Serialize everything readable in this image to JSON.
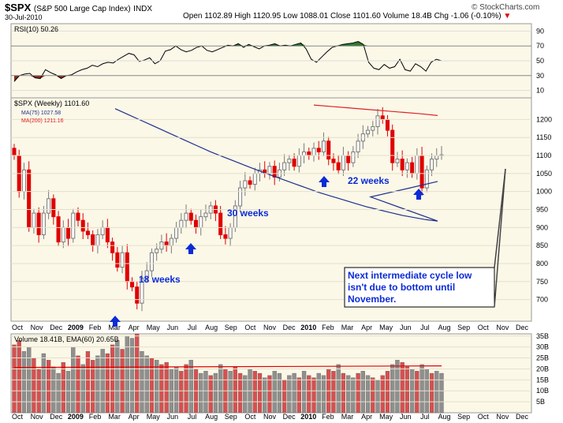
{
  "header": {
    "symbol": "$SPX",
    "name": "(S&P 500 Large Cap Index)",
    "exchange": "INDX",
    "date": "30-Jul-2010",
    "ohlc_text": "Open 1102.89  High 1120.95  Low 1088.01  Close 1101.60  Volume 18.4B  Chg -1.06 (-0.10%)",
    "chg_arrow": "▼",
    "logo": "© StockCharts.com"
  },
  "colors": {
    "panel_bg": "#fbf8e8",
    "up_candle": "#7a7a7a",
    "down_candle": "#e00000",
    "ma75": "#1f2f8a",
    "ma200": "#e02020",
    "rsi_line": "#000000",
    "rsi_fill": "#8b2a18",
    "rsi_fill_high": "#2f7a2f",
    "annotation": "#0b2bd6",
    "volume_ema": "#e00000"
  },
  "chart_data": [
    {
      "type": "line",
      "name": "RSI(10)",
      "label": "RSI(10) 50.26",
      "ylim": [
        0,
        100
      ],
      "ticks": [
        10,
        30,
        50,
        70,
        90
      ],
      "values": [
        22,
        30,
        32,
        33,
        27,
        26,
        38,
        34,
        31,
        26,
        30,
        31,
        35,
        38,
        40,
        44,
        42,
        46,
        48,
        47,
        52,
        56,
        60,
        58,
        49,
        51,
        54,
        46,
        50,
        63,
        65,
        70,
        65,
        62,
        64,
        68,
        70,
        64,
        62,
        65,
        68,
        71,
        70,
        73,
        68,
        72,
        69,
        66,
        70,
        71,
        73,
        70,
        71,
        70,
        72,
        74,
        66,
        52,
        48,
        55,
        62,
        68,
        70,
        72,
        73,
        74,
        76,
        72,
        48,
        40,
        38,
        45,
        40,
        42,
        52,
        38,
        36,
        46,
        42,
        36,
        48,
        52,
        50
      ]
    },
    {
      "type": "candlestick",
      "name": "$SPX (Weekly)",
      "legend": [
        "$SPX (Weekly) 1101.60",
        "MA(75) 1027.58",
        "MA(200) 1211.16"
      ],
      "ylim": [
        640,
        1260
      ],
      "ticks": [
        700,
        750,
        800,
        850,
        900,
        950,
        1000,
        1050,
        1100,
        1150,
        1200
      ],
      "x_labels": [
        "Oct",
        "Nov",
        "Dec",
        "2009",
        "Feb",
        "Mar",
        "Apr",
        "May",
        "Jun",
        "Jul",
        "Aug",
        "Sep",
        "Oct",
        "Nov",
        "Dec",
        "2010",
        "Feb",
        "Mar",
        "Apr",
        "May",
        "Jun",
        "Jul",
        "Aug",
        "Sep",
        "Oct",
        "Nov",
        "Dec"
      ],
      "close": [
        1100,
        1000,
        1060,
        900,
        940,
        880,
        940,
        980,
        930,
        860,
        900,
        870,
        940,
        920,
        890,
        880,
        850,
        880,
        900,
        860,
        830,
        790,
        830,
        750,
        735,
        690,
        760,
        780,
        830,
        840,
        860,
        850,
        870,
        900,
        920,
        940,
        920,
        900,
        930,
        940,
        960,
        940,
        880,
        870,
        900,
        960,
        1010,
        1030,
        1020,
        1050,
        1060,
        1050,
        1070,
        1040,
        1060,
        1080,
        1090,
        1070,
        1100,
        1110,
        1100,
        1120,
        1110,
        1140,
        1090,
        1080,
        1060,
        1100,
        1080,
        1110,
        1140,
        1160,
        1170,
        1180,
        1210,
        1200,
        1170,
        1080,
        1090,
        1060,
        1080,
        1050,
        1100,
        1010,
        1060,
        1090,
        1100,
        1102
      ],
      "ma75": [
        1230,
        1215,
        1200,
        1185,
        1170,
        1155,
        1140,
        1125,
        1110,
        1097,
        1084,
        1071,
        1058,
        1046,
        1034,
        1022,
        1010,
        998,
        988,
        978,
        968,
        958,
        950,
        942,
        934,
        928,
        922,
        918,
        1028
      ],
      "ma200": [
        1240,
        1236,
        1232,
        1228,
        1224,
        1220,
        1216,
        1211
      ]
    },
    {
      "type": "bar",
      "name": "Volume",
      "label": "Volume 18.41B, EMA(60) 20.65B",
      "ylim": [
        0,
        36
      ],
      "ticks": [
        "35B",
        "30B",
        "25B",
        "20B",
        "15B",
        "10B",
        "5B"
      ],
      "ema60": 20.65,
      "values": [
        31,
        33,
        28,
        30,
        25,
        20,
        27,
        24,
        21,
        18,
        23,
        19,
        30,
        26,
        22,
        28,
        24,
        26,
        29,
        27,
        31,
        33,
        29,
        35,
        34,
        36,
        28,
        26,
        25,
        24,
        22,
        23,
        20,
        21,
        19,
        22,
        24,
        20,
        18,
        19,
        17,
        18,
        22,
        20,
        19,
        21,
        18,
        17,
        20,
        19,
        18,
        16,
        17,
        19,
        18,
        15,
        17,
        18,
        16,
        19,
        17,
        16,
        18,
        17,
        20,
        19,
        22,
        18,
        17,
        16,
        18,
        19,
        17,
        16,
        15,
        17,
        19,
        22,
        24,
        23,
        21,
        20,
        19,
        22,
        20,
        18,
        19,
        18
      ]
    }
  ],
  "annotations": {
    "weeks18": "18 weeks",
    "weeks30": "30 weeks",
    "weeks22": "22 weeks",
    "callout": [
      "Next intermediate cycle low",
      "isn't due to bottom until",
      "November."
    ]
  }
}
